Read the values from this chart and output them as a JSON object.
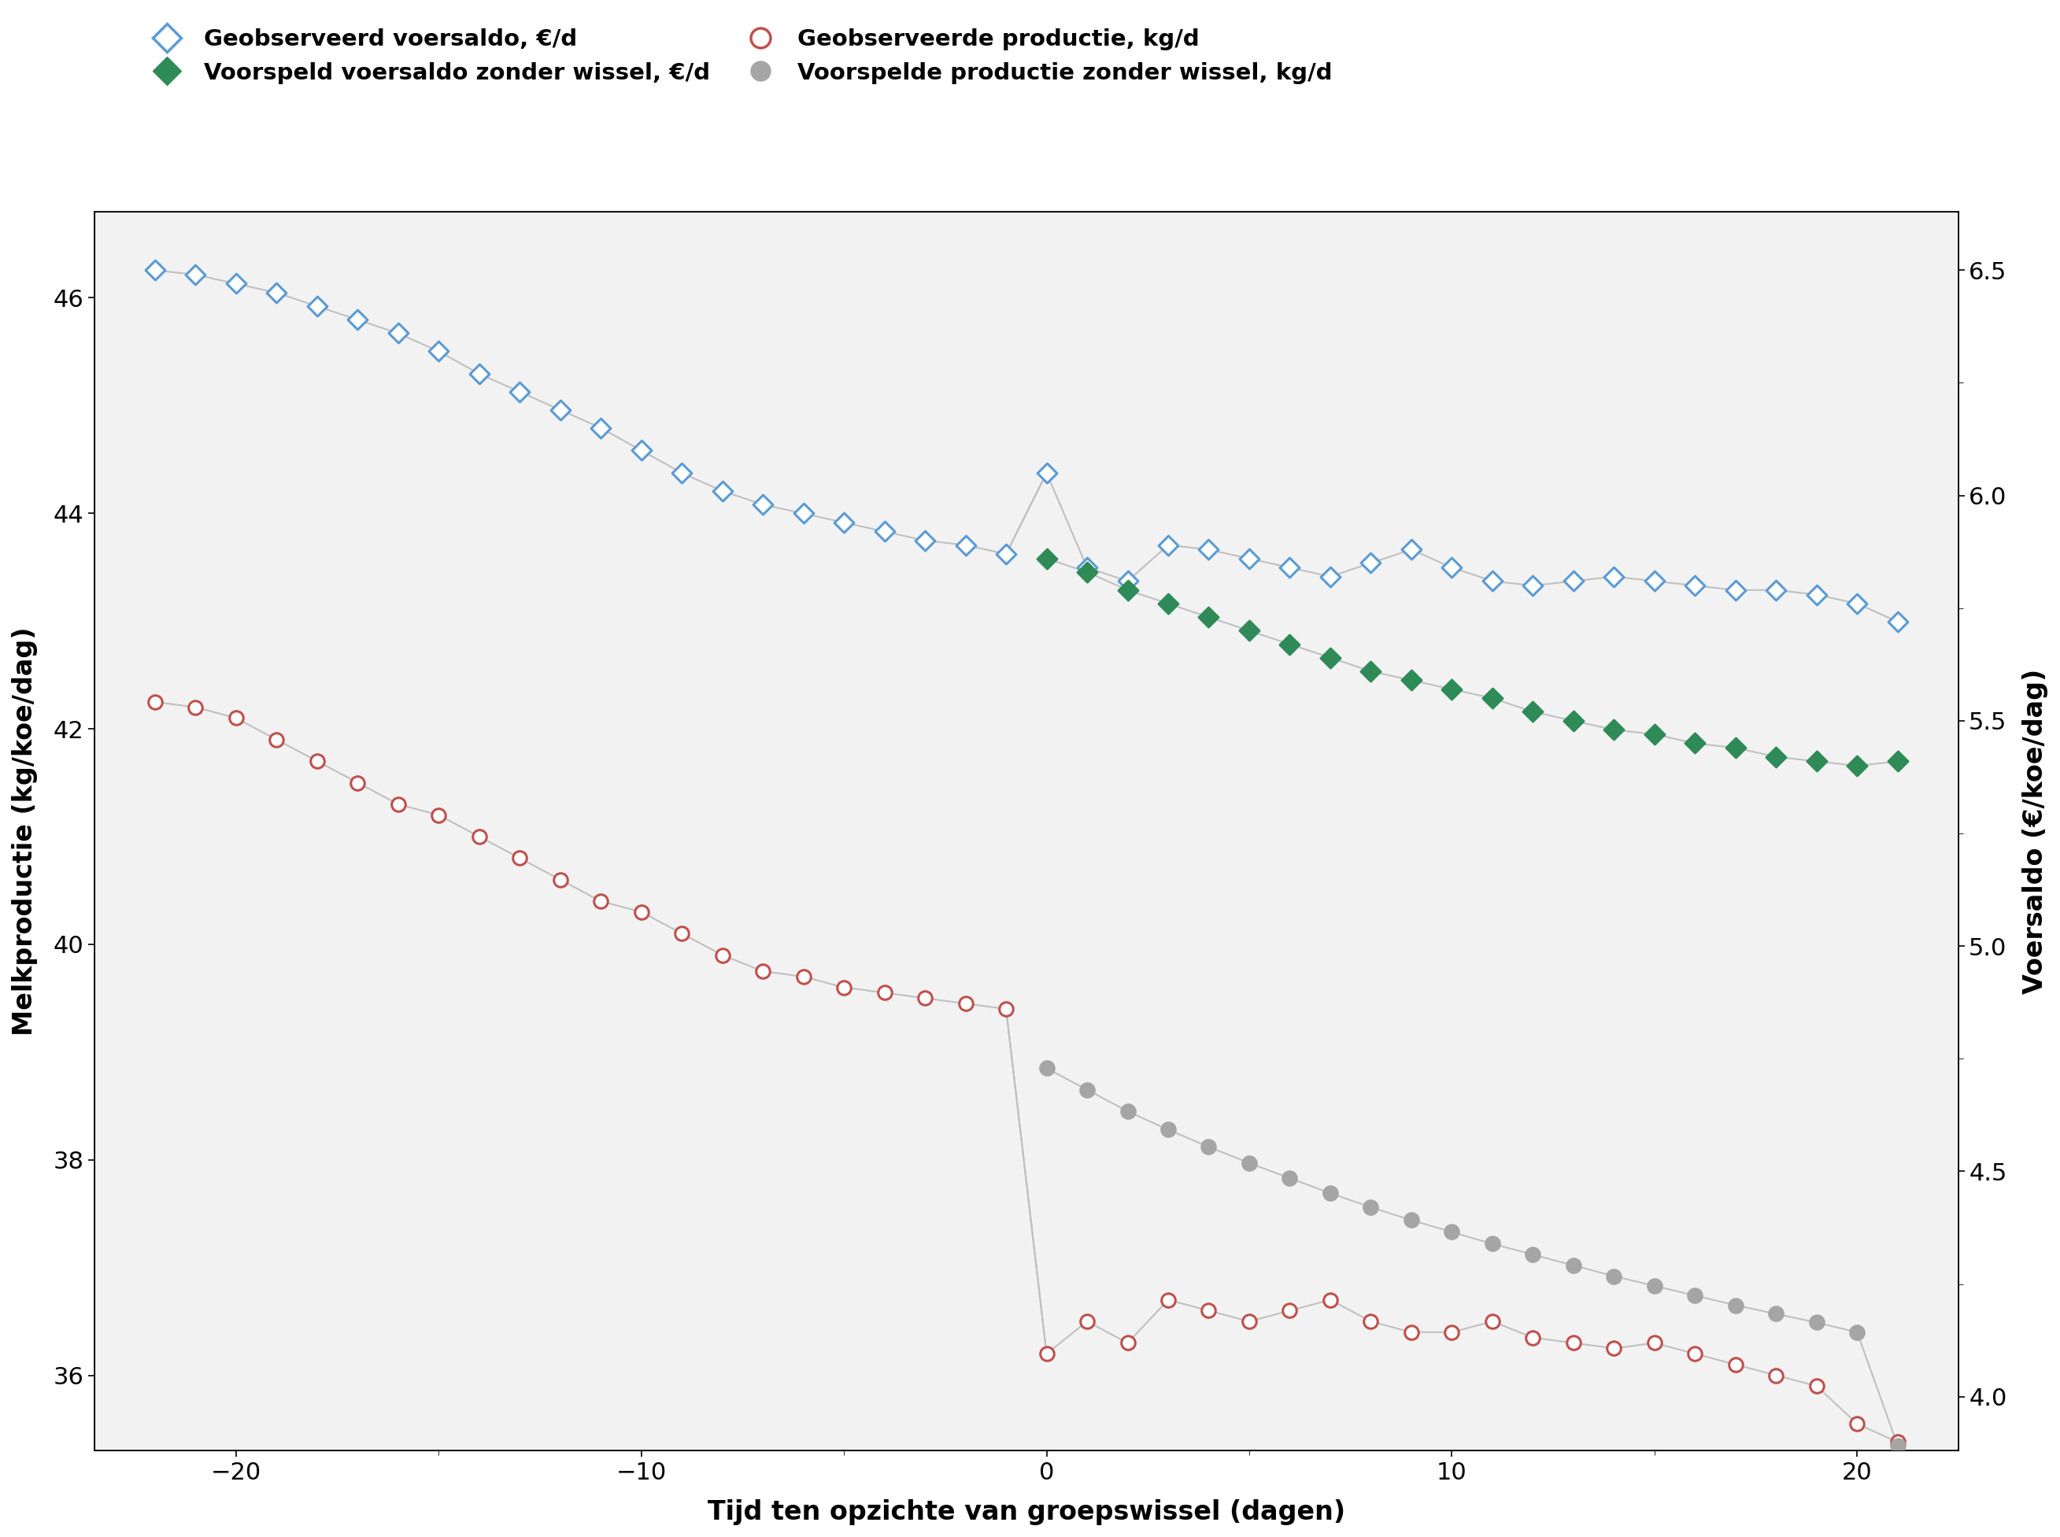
{
  "xlabel": "Tijd ten opzichte van groepswissel (dagen)",
  "ylabel_left": "Melkproductie (kg/koe/dag)",
  "ylabel_right": "Voersaldo (€/koe/dag)",
  "xlim": [
    -23.5,
    22.5
  ],
  "ylim_left": [
    35.3,
    46.8
  ],
  "ylim_right": [
    3.88,
    6.63
  ],
  "legend_labels": [
    "Geobserveerd voersaldo, €/d",
    "Voorspeld voersaldo zonder wissel, €/d",
    "Geobserveerde productie, kg/d",
    "Voorspelde productie zonder wissel, kg/d"
  ],
  "blue_x": [
    -22,
    -21,
    -20,
    -19,
    -18,
    -17,
    -16,
    -15,
    -14,
    -13,
    -12,
    -11,
    -10,
    -9,
    -8,
    -7,
    -6,
    -5,
    -4,
    -3,
    -2,
    -1,
    0,
    1,
    2,
    3,
    4,
    5,
    6,
    7,
    8,
    9,
    10,
    11,
    12,
    13,
    14,
    15,
    16,
    17,
    18,
    19,
    20,
    21
  ],
  "blue_y": [
    6.5,
    6.49,
    6.47,
    6.45,
    6.42,
    6.39,
    6.36,
    6.32,
    6.27,
    6.23,
    6.19,
    6.15,
    6.1,
    6.05,
    6.01,
    5.98,
    5.96,
    5.94,
    5.92,
    5.9,
    5.89,
    5.87,
    6.05,
    5.84,
    5.81,
    5.89,
    5.88,
    5.86,
    5.84,
    5.82,
    5.85,
    5.88,
    5.84,
    5.81,
    5.8,
    5.81,
    5.82,
    5.81,
    5.8,
    5.79,
    5.79,
    5.78,
    5.76,
    5.72
  ],
  "green_x": [
    0,
    1,
    2,
    3,
    4,
    5,
    6,
    7,
    8,
    9,
    10,
    11,
    12,
    13,
    14,
    15,
    16,
    17,
    18,
    19,
    20,
    21
  ],
  "green_y": [
    5.86,
    5.83,
    5.79,
    5.76,
    5.73,
    5.7,
    5.67,
    5.64,
    5.61,
    5.59,
    5.57,
    5.55,
    5.52,
    5.5,
    5.48,
    5.47,
    5.45,
    5.44,
    5.42,
    5.41,
    5.4,
    5.41
  ],
  "red_x": [
    -22,
    -21,
    -20,
    -19,
    -18,
    -17,
    -16,
    -15,
    -14,
    -13,
    -12,
    -11,
    -10,
    -9,
    -8,
    -7,
    -6,
    -5,
    -4,
    -3,
    -2,
    -1,
    0,
    1,
    2,
    3,
    4,
    5,
    6,
    7,
    8,
    9,
    10,
    11,
    12,
    13,
    14,
    15,
    16,
    17,
    18,
    19,
    20,
    21
  ],
  "red_y": [
    42.25,
    42.2,
    42.1,
    41.9,
    41.7,
    41.5,
    41.3,
    41.2,
    41.0,
    40.8,
    40.6,
    40.4,
    40.3,
    40.1,
    39.9,
    39.75,
    39.7,
    39.6,
    39.55,
    39.5,
    39.45,
    39.4,
    36.2,
    36.5,
    36.3,
    36.7,
    36.6,
    36.5,
    36.6,
    36.7,
    36.5,
    36.4,
    36.4,
    36.5,
    36.35,
    36.3,
    36.25,
    36.3,
    36.2,
    36.1,
    36.0,
    35.9,
    35.55,
    35.38
  ],
  "gray_x": [
    0,
    1,
    2,
    3,
    4,
    5,
    6,
    7,
    8,
    9,
    10,
    11,
    12,
    13,
    14,
    15,
    16,
    17,
    18,
    19,
    20,
    21
  ],
  "gray_y": [
    38.85,
    38.65,
    38.45,
    38.28,
    38.12,
    37.97,
    37.83,
    37.69,
    37.56,
    37.44,
    37.33,
    37.22,
    37.12,
    37.02,
    36.92,
    36.83,
    36.74,
    36.65,
    36.57,
    36.49,
    36.4,
    35.35
  ],
  "blue_color": "#5B9BD5",
  "green_color": "#2E8B57",
  "red_color": "#C0504D",
  "gray_color": "#A5A5A5",
  "connector_color": "#C0C0C0",
  "plot_bg": "#F2F2F2",
  "yticks_left": [
    36,
    38,
    40,
    42,
    44,
    46
  ],
  "yticks_right": [
    4.0,
    4.5,
    5.0,
    5.5,
    6.0,
    6.5
  ],
  "xticks": [
    -20,
    -10,
    0,
    10,
    20
  ]
}
